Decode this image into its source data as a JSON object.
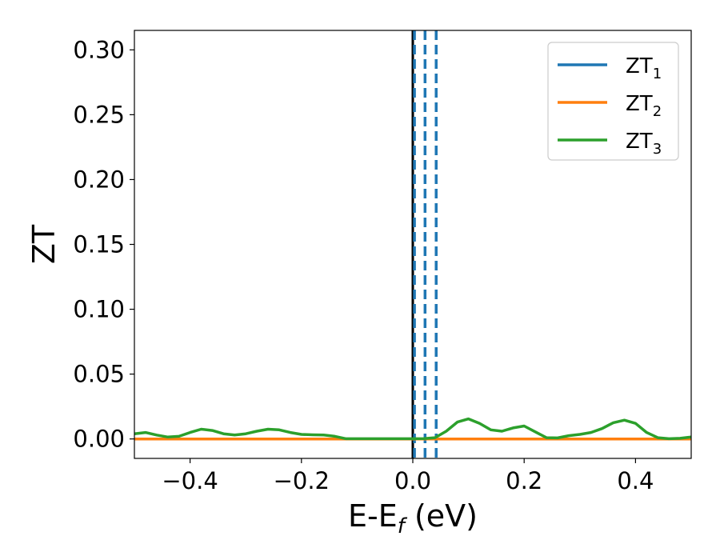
{
  "chart_data": {
    "type": "line",
    "title": "",
    "xlabel": {
      "main": "E-E",
      "sub": "f",
      "unit": " (eV)"
    },
    "ylabel": "ZT",
    "xlim": [
      -0.5,
      0.5
    ],
    "ylim": [
      -0.015,
      0.315
    ],
    "xticks": [
      -0.4,
      -0.2,
      0.0,
      0.2,
      0.4
    ],
    "xtick_labels": [
      "−0.4",
      "−0.2",
      "0.0",
      "0.2",
      "0.4"
    ],
    "yticks": [
      0.0,
      0.05,
      0.1,
      0.15,
      0.2,
      0.25,
      0.3
    ],
    "ytick_labels": [
      "0.00",
      "0.05",
      "0.10",
      "0.15",
      "0.20",
      "0.25",
      "0.30"
    ],
    "grid": false,
    "legend_position": "top-right",
    "series": [
      {
        "name": "ZT",
        "sub": "1",
        "color": "#1f77b4",
        "x": [
          -0.5,
          0.5
        ],
        "y": [
          0.0,
          0.0
        ]
      },
      {
        "name": "ZT",
        "sub": "2",
        "color": "#ff7f0e",
        "x": [
          -0.5,
          0.5
        ],
        "y": [
          0.0,
          0.0
        ]
      },
      {
        "name": "ZT",
        "sub": "3",
        "color": "#2ca02c",
        "x": [
          -0.5,
          -0.48,
          -0.46,
          -0.44,
          -0.42,
          -0.4,
          -0.38,
          -0.36,
          -0.34,
          -0.32,
          -0.3,
          -0.28,
          -0.26,
          -0.24,
          -0.22,
          -0.2,
          -0.18,
          -0.16,
          -0.14,
          -0.12,
          -0.1,
          -0.08,
          -0.06,
          -0.04,
          -0.02,
          0.0,
          0.02,
          0.04,
          0.06,
          0.08,
          0.1,
          0.12,
          0.14,
          0.16,
          0.18,
          0.2,
          0.22,
          0.24,
          0.26,
          0.28,
          0.3,
          0.32,
          0.34,
          0.36,
          0.38,
          0.4,
          0.42,
          0.44,
          0.46,
          0.48,
          0.5
        ],
        "y": [
          0.004,
          0.005,
          0.003,
          0.0015,
          0.002,
          0.005,
          0.0075,
          0.0065,
          0.004,
          0.003,
          0.004,
          0.006,
          0.0075,
          0.007,
          0.005,
          0.0035,
          0.0032,
          0.003,
          0.002,
          0.0002,
          0.0002,
          0.0002,
          0.0002,
          0.0002,
          0.0002,
          0.0002,
          0.0003,
          0.001,
          0.006,
          0.013,
          0.0155,
          0.012,
          0.007,
          0.006,
          0.0085,
          0.01,
          0.0055,
          0.001,
          0.0008,
          0.0025,
          0.0035,
          0.005,
          0.008,
          0.0125,
          0.0145,
          0.012,
          0.005,
          0.001,
          0.0002,
          0.0005,
          0.0015
        ]
      }
    ],
    "reference_lines": [
      {
        "style": "solid",
        "color": "#000000",
        "x": 0.0
      },
      {
        "style": "dashed",
        "color": "#1f77b4",
        "x": 0.003
      },
      {
        "style": "dashed",
        "color": "#1f77b4",
        "x": 0.022
      },
      {
        "style": "dashed",
        "color": "#1f77b4",
        "x": 0.042
      }
    ]
  }
}
